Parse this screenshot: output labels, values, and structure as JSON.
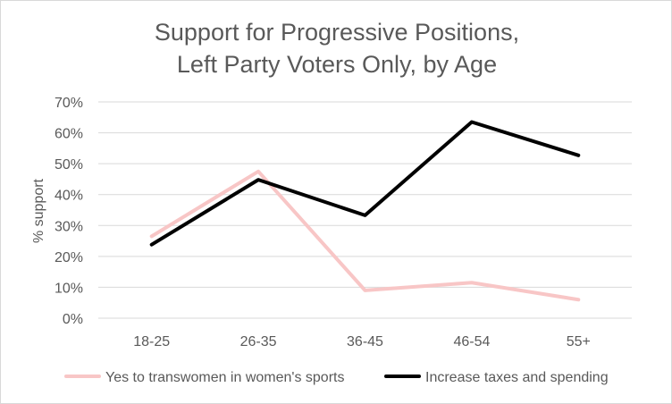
{
  "chart_data": {
    "type": "line",
    "title": [
      "Support for Progressive Positions,",
      "Left Party Voters Only, by Age"
    ],
    "xlabel": "",
    "ylabel": "% support",
    "categories": [
      "18-25",
      "26-35",
      "36-45",
      "46-54",
      "55+"
    ],
    "ylim": [
      0,
      70
    ],
    "yticks": [
      0,
      10,
      20,
      30,
      40,
      50,
      60,
      70
    ],
    "ytick_labels": [
      "0%",
      "10%",
      "20%",
      "30%",
      "40%",
      "50%",
      "60%",
      "70%"
    ],
    "grid": true,
    "legend_position": "bottom",
    "series": [
      {
        "name": "Yes to transwomen in women's sports",
        "values": [
          26.5,
          47.5,
          9.0,
          11.5,
          6.0
        ],
        "color": "#f8c6c6"
      },
      {
        "name": "Increase taxes and spending",
        "values": [
          23.8,
          44.8,
          33.3,
          63.5,
          52.7
        ],
        "color": "#000000"
      }
    ]
  }
}
